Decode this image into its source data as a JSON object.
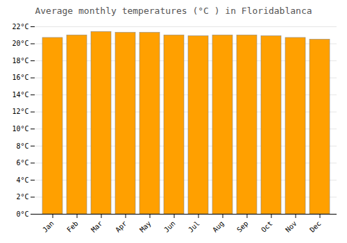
{
  "chart_data": {
    "type": "bar",
    "title": "Average monthly temperatures (°C ) in Floridablanca",
    "categories": [
      "Jan",
      "Feb",
      "Mar",
      "Apr",
      "May",
      "Jun",
      "Jul",
      "Aug",
      "Sep",
      "Oct",
      "Nov",
      "Dec"
    ],
    "values": [
      20.7,
      21.0,
      21.4,
      21.3,
      21.3,
      21.0,
      20.9,
      21.0,
      21.0,
      20.9,
      20.7,
      20.5
    ],
    "color": "#FFA000",
    "ylim": [
      0,
      22
    ],
    "yticks": [
      {
        "value": 0,
        "label": "0°C"
      },
      {
        "value": 2,
        "label": "2°C"
      },
      {
        "value": 4,
        "label": "4°C"
      },
      {
        "value": 6,
        "label": "6°C"
      },
      {
        "value": 8,
        "label": "8°C"
      },
      {
        "value": 10,
        "label": "10°C"
      },
      {
        "value": 12,
        "label": "12°C"
      },
      {
        "value": 14,
        "label": "14°C"
      },
      {
        "value": 16,
        "label": "16°C"
      },
      {
        "value": 18,
        "label": "18°C"
      },
      {
        "value": 20,
        "label": "20°C"
      },
      {
        "value": 22,
        "label": "22°C"
      }
    ],
    "grid": true
  }
}
